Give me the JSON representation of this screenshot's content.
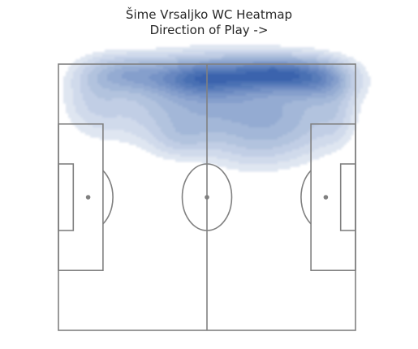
{
  "chart_data": {
    "type": "heatmap",
    "title": "Šime Vrsaljko WC Heatmap",
    "subtitle": "Direction of Play ->",
    "x_range": [
      0,
      120
    ],
    "y_range": [
      0,
      80
    ],
    "colors": {
      "pitch_lines": "#808080",
      "density_low": "#dfe6f1",
      "density_high": "#3a64ad",
      "background": "#ffffff"
    },
    "density_levels": 12,
    "hotspots": [
      {
        "x": 88,
        "y": 77,
        "sx": 13,
        "sy": 3.2,
        "w": 1.0
      },
      {
        "x": 58,
        "y": 76,
        "sx": 13,
        "sy": 3.5,
        "w": 0.85
      },
      {
        "x": 28,
        "y": 77,
        "sx": 11,
        "sy": 3.5,
        "w": 0.45
      },
      {
        "x": 106,
        "y": 75,
        "sx": 9,
        "sy": 4,
        "w": 0.5
      },
      {
        "x": 75,
        "y": 70,
        "sx": 22,
        "sy": 8,
        "w": 0.35
      },
      {
        "x": 50,
        "y": 68,
        "sx": 22,
        "sy": 8,
        "w": 0.3
      },
      {
        "x": 95,
        "y": 62,
        "sx": 12,
        "sy": 7,
        "w": 0.22
      },
      {
        "x": 50,
        "y": 58,
        "sx": 8,
        "sy": 4,
        "w": 0.18
      },
      {
        "x": 78,
        "y": 57,
        "sx": 12,
        "sy": 6,
        "w": 0.2
      },
      {
        "x": 15,
        "y": 70,
        "sx": 8,
        "sy": 7,
        "w": 0.18
      },
      {
        "x": 112,
        "y": 65,
        "sx": 5,
        "sy": 6,
        "w": 0.15
      }
    ]
  }
}
